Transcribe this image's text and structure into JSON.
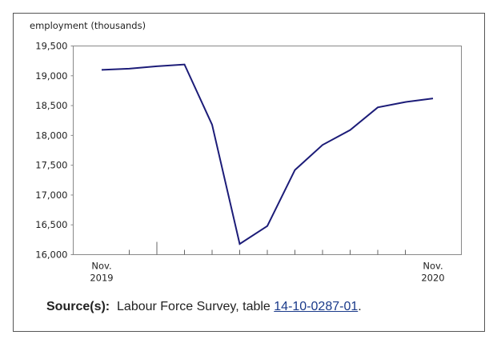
{
  "chart_data": {
    "type": "line",
    "y_axis_label": "employment (thousands)",
    "categories": [
      "Nov. 2019",
      null,
      null,
      null,
      null,
      null,
      null,
      null,
      null,
      null,
      null,
      null,
      "Nov. 2020"
    ],
    "series": [
      {
        "name": "employment",
        "color": "#1c1c78",
        "values": [
          19100,
          19120,
          19160,
          19190,
          18180,
          16180,
          16480,
          17420,
          17840,
          18090,
          18470,
          18560,
          18620
        ]
      }
    ],
    "ylim": [
      16000,
      19500
    ],
    "yticks": [
      {
        "value": 16000,
        "label": "16,000"
      },
      {
        "value": 16500,
        "label": "16,500"
      },
      {
        "value": 17000,
        "label": "17,000"
      },
      {
        "value": 17500,
        "label": "17,500"
      },
      {
        "value": 18000,
        "label": "18,000"
      },
      {
        "value": 18500,
        "label": "18,500"
      },
      {
        "value": 19000,
        "label": "19,000"
      },
      {
        "value": 19500,
        "label": "19,500"
      }
    ]
  },
  "source": {
    "label": "Source(s):",
    "text": "Labour Force Survey, table ",
    "link": "14-10-0287-01",
    "end": "."
  }
}
